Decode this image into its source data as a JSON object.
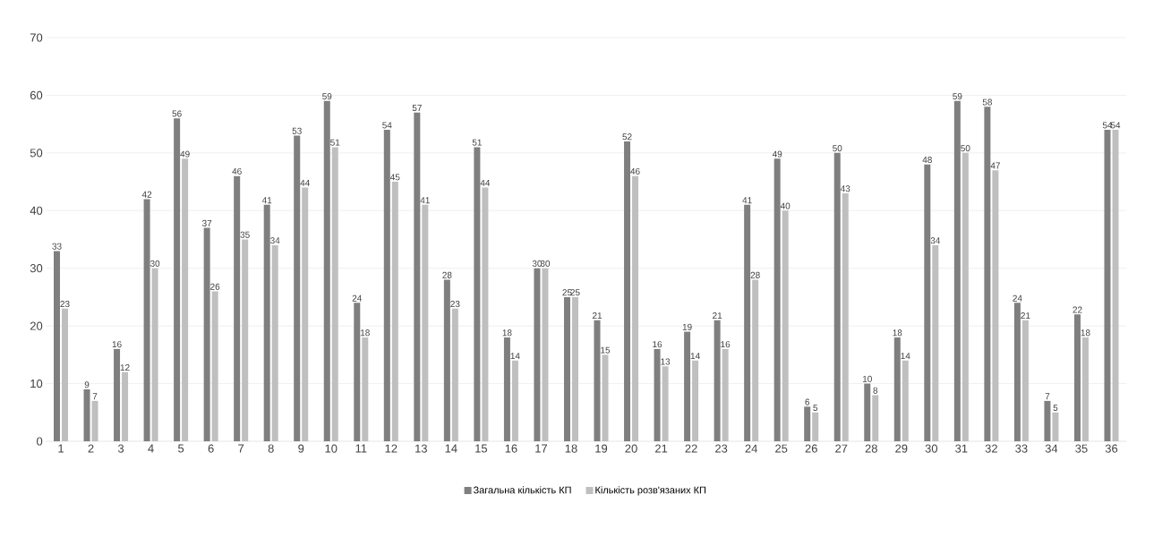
{
  "chart_data": {
    "type": "bar",
    "categories": [
      "1",
      "2",
      "3",
      "4",
      "5",
      "6",
      "7",
      "8",
      "9",
      "10",
      "11",
      "12",
      "13",
      "14",
      "15",
      "16",
      "17",
      "18",
      "19",
      "20",
      "21",
      "22",
      "23",
      "24",
      "25",
      "26",
      "27",
      "28",
      "29",
      "30",
      "31",
      "32",
      "33",
      "34",
      "35",
      "36"
    ],
    "series": [
      {
        "name": "Загальна кількість КП",
        "color": "#7f7f7f",
        "values": [
          33,
          9,
          16,
          42,
          56,
          37,
          46,
          41,
          53,
          59,
          24,
          54,
          57,
          28,
          51,
          18,
          30,
          25,
          21,
          52,
          16,
          19,
          21,
          41,
          49,
          6,
          50,
          10,
          18,
          48,
          59,
          58,
          24,
          7,
          22,
          54
        ]
      },
      {
        "name": "Кількість розв'язаних КП",
        "color": "#bfbfbf",
        "values": [
          23,
          7,
          12,
          30,
          49,
          26,
          35,
          34,
          44,
          51,
          18,
          45,
          41,
          23,
          44,
          14,
          30,
          25,
          15,
          46,
          13,
          14,
          16,
          28,
          40,
          5,
          43,
          8,
          14,
          34,
          50,
          47,
          21,
          5,
          18,
          54
        ]
      }
    ],
    "ylim": [
      0,
      70
    ],
    "yticks": [
      0,
      10,
      20,
      30,
      40,
      50,
      60,
      70
    ],
    "grid": "y",
    "legend": "bottom",
    "data_labels": true
  }
}
